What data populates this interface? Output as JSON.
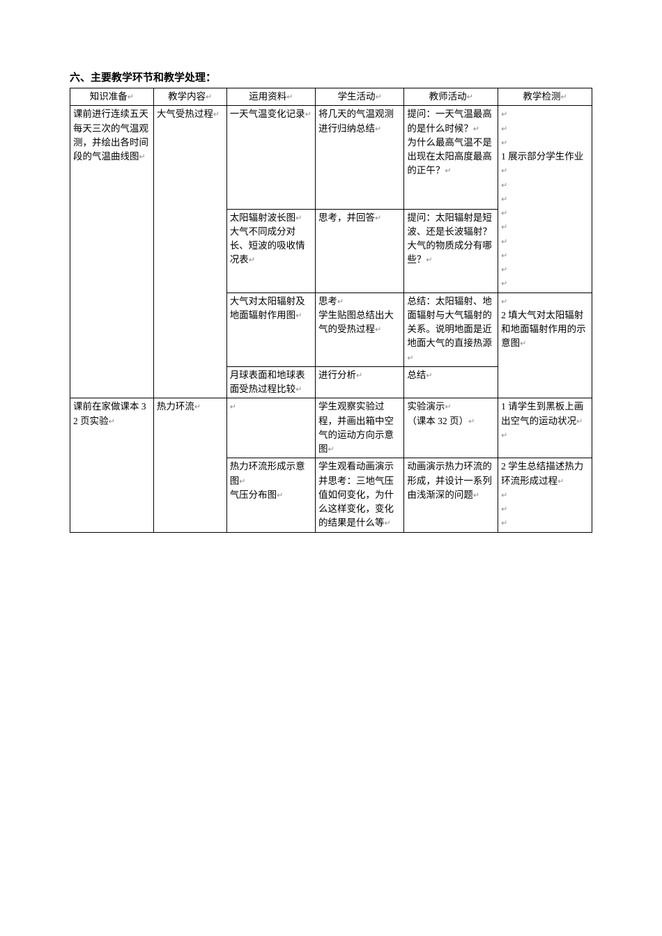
{
  "heading": "六、主要教学环节和教学处理：",
  "table": {
    "headers": [
      "知识准备",
      "教学内容",
      "运用资料",
      "学生活动",
      "教师活动",
      "教学检测"
    ],
    "row1": {
      "c1": "课前进行连续五天每天三次的气温观测，并绘出各时间段的气温曲线图",
      "c2": "大气受热过程",
      "c3": "一天气温变化记录",
      "c4": "将几天的气温观测进行归纳总结",
      "c5": "提问：一天气温最高的是什么时候？\n为什么最高气温不是出现在太阳高度最高的正午？",
      "c6_a": "1 展示部分学生作业",
      "c6_b": "2 填大气对太阳辐射和地面辐射作用的示意图"
    },
    "row2": {
      "c3": "太阳辐射波长图\n大气不同成分对长、短波的吸收情况表",
      "c4": "思考，并回答",
      "c5": "提问：太阳辐射是短波、还是长波辐射？大气的物质成分有哪些？"
    },
    "row3": {
      "c3": "大气对太阳辐射及地面辐射作用图",
      "c4": "思考\n学生贴图总结出大气的受热过程",
      "c5": "总结：太阳辐射、地面辐射与大气辐射的关系。说明地面是近地面大气的直接热源"
    },
    "row4": {
      "c3": "月球表面和地球表面受热过程比较",
      "c4": "进行分析",
      "c5": "总结"
    },
    "row5": {
      "c1": "课前在家做课本 32 页实验",
      "c2": "热力环流",
      "c3": "",
      "c4": "学生观察实验过程，并画出箱中空气的运动方向示意图",
      "c5": "实验演示\n（课本 32 页）",
      "c6_a": "1 请学生到黑板上画出空气的运动状况",
      "c6_b": "2 学生总结描述热力环流形成过程"
    },
    "row6": {
      "c3": "热力环流形成示意图\n气压分布图",
      "c4": "学生观看动画演示并思考：三地气压值如何变化，为什么这样变化，变化的结果是什么等",
      "c5": "动画演示热力环流的形成，并设计一系列由浅渐深的问题"
    }
  },
  "styles": {
    "font_size": 14,
    "border_color": "#000000",
    "background_color": "#ffffff",
    "text_color": "#000000",
    "para_mark_color": "#888888"
  }
}
